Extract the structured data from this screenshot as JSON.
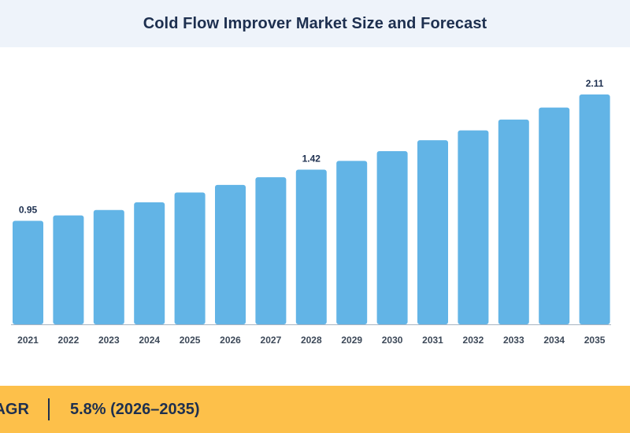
{
  "header": {
    "title": "Cold Flow Improver Market Size and Forecast"
  },
  "footer": {
    "cagr_label": "CAGR",
    "cagr_value": "5.8% (2026–2035)"
  },
  "colors": {
    "bar": "#62b4e6",
    "header_bg": "#eef3fa",
    "footer_bg": "#fdc04a",
    "text": "#1d2f4f",
    "axis": "#a8b4c2"
  },
  "chart_data": {
    "type": "bar",
    "title": "Cold Flow Improver Market Size and Forecast",
    "xlabel": "",
    "ylabel": "",
    "categories": [
      "2021",
      "2022",
      "2023",
      "2024",
      "2025",
      "2026",
      "2027",
      "2028",
      "2029",
      "2030",
      "2031",
      "2032",
      "2033",
      "2034",
      "2035"
    ],
    "values": [
      0.95,
      1.0,
      1.05,
      1.12,
      1.21,
      1.28,
      1.35,
      1.42,
      1.5,
      1.59,
      1.69,
      1.78,
      1.88,
      1.99,
      2.11
    ],
    "data_labels": {
      "2021": "0.95",
      "2028": "1.42",
      "2035": "2.11"
    },
    "ylim": [
      0,
      2.11
    ],
    "grid": false,
    "legend": "none"
  }
}
